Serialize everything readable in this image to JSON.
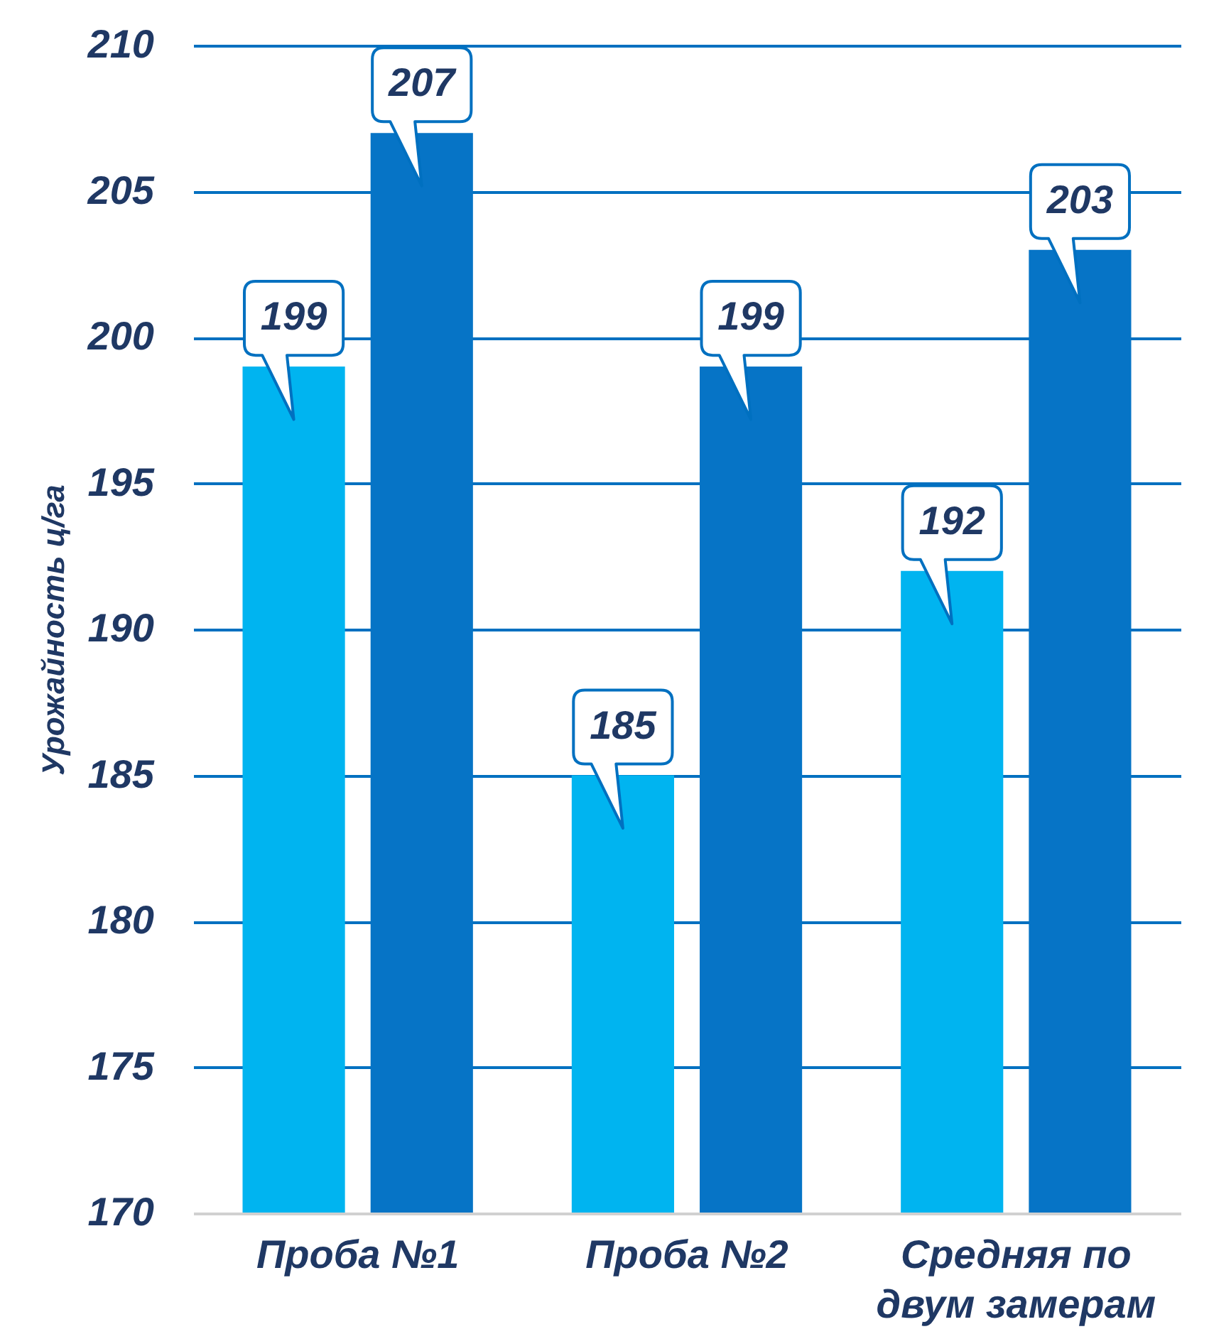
{
  "chart_data": {
    "type": "bar",
    "ylabel": "Урожайность ц/га",
    "categories": [
      "Проба №1",
      "Проба №2",
      "Средняя по двум замерам"
    ],
    "series": [
      {
        "color": "#00b4f0",
        "values": [
          199,
          185,
          192
        ]
      },
      {
        "color": "#0674c6",
        "values": [
          207,
          199,
          203
        ]
      }
    ],
    "ylim": [
      170,
      210
    ],
    "yticks": [
      170,
      175,
      180,
      185,
      190,
      195,
      200,
      205,
      210
    ],
    "grid": "y",
    "data_labels": true
  }
}
